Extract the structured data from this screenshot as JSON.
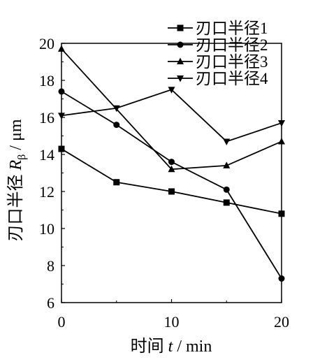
{
  "chart_data": {
    "type": "line",
    "xlabel": {
      "prefix": "时间 ",
      "var": "t",
      "suffix": " / min"
    },
    "ylabel": {
      "prefix": "刃口半径 ",
      "var": "R",
      "sub": "β",
      "suffix": " / μm"
    },
    "xlim": [
      0,
      20
    ],
    "ylim": [
      6,
      20
    ],
    "xticks": [
      0,
      10,
      20
    ],
    "yticks": [
      6,
      8,
      10,
      12,
      14,
      16,
      18,
      20
    ],
    "grid": false,
    "legend_position": "top-right",
    "series": [
      {
        "name": "刃口半径1",
        "marker": "square",
        "x": [
          0,
          5,
          10,
          15,
          20
        ],
        "y": [
          14.3,
          12.5,
          12.0,
          11.4,
          10.8
        ]
      },
      {
        "name": "刃口半径2",
        "marker": "circle",
        "x": [
          0,
          5,
          10,
          15,
          20
        ],
        "y": [
          17.4,
          15.6,
          13.6,
          12.1,
          7.3
        ]
      },
      {
        "name": "刃口半径3",
        "marker": "triangle-up",
        "x": [
          0,
          10,
          15,
          20
        ],
        "y": [
          19.7,
          13.2,
          13.4,
          14.7
        ]
      },
      {
        "name": "刃口半径4",
        "marker": "triangle-down",
        "x": [
          0,
          5,
          10,
          15,
          20
        ],
        "y": [
          16.1,
          16.5,
          17.5,
          14.7,
          15.7
        ]
      }
    ]
  }
}
